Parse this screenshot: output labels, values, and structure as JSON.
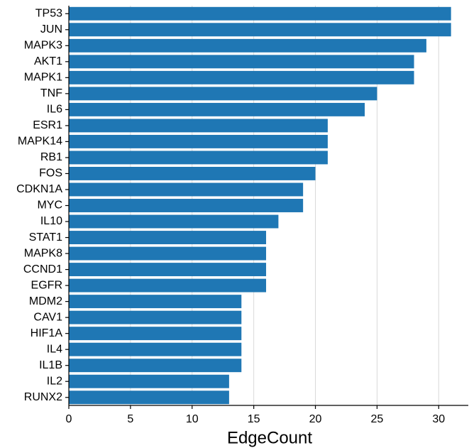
{
  "chart_data": {
    "type": "barh",
    "xlabel": "EdgeCount",
    "categories": [
      "TP53",
      "JUN",
      "MAPK3",
      "AKT1",
      "MAPK1",
      "TNF",
      "IL6",
      "ESR1",
      "MAPK14",
      "RB1",
      "FOS",
      "CDKN1A",
      "MYC",
      "IL10",
      "STAT1",
      "MAPK8",
      "CCND1",
      "EGFR",
      "MDM2",
      "CAV1",
      "HIF1A",
      "IL4",
      "IL1B",
      "IL2",
      "RUNX2"
    ],
    "values": [
      31,
      31,
      29,
      28,
      28,
      25,
      24,
      21,
      21,
      21,
      20,
      19,
      19,
      17,
      16,
      16,
      16,
      16,
      14,
      14,
      14,
      14,
      14,
      13,
      13
    ],
    "color": "#1f77b4",
    "xlim": [
      0,
      32.4
    ],
    "xticks": [
      0,
      5,
      10,
      15,
      20,
      25,
      30
    ],
    "grid": true
  }
}
